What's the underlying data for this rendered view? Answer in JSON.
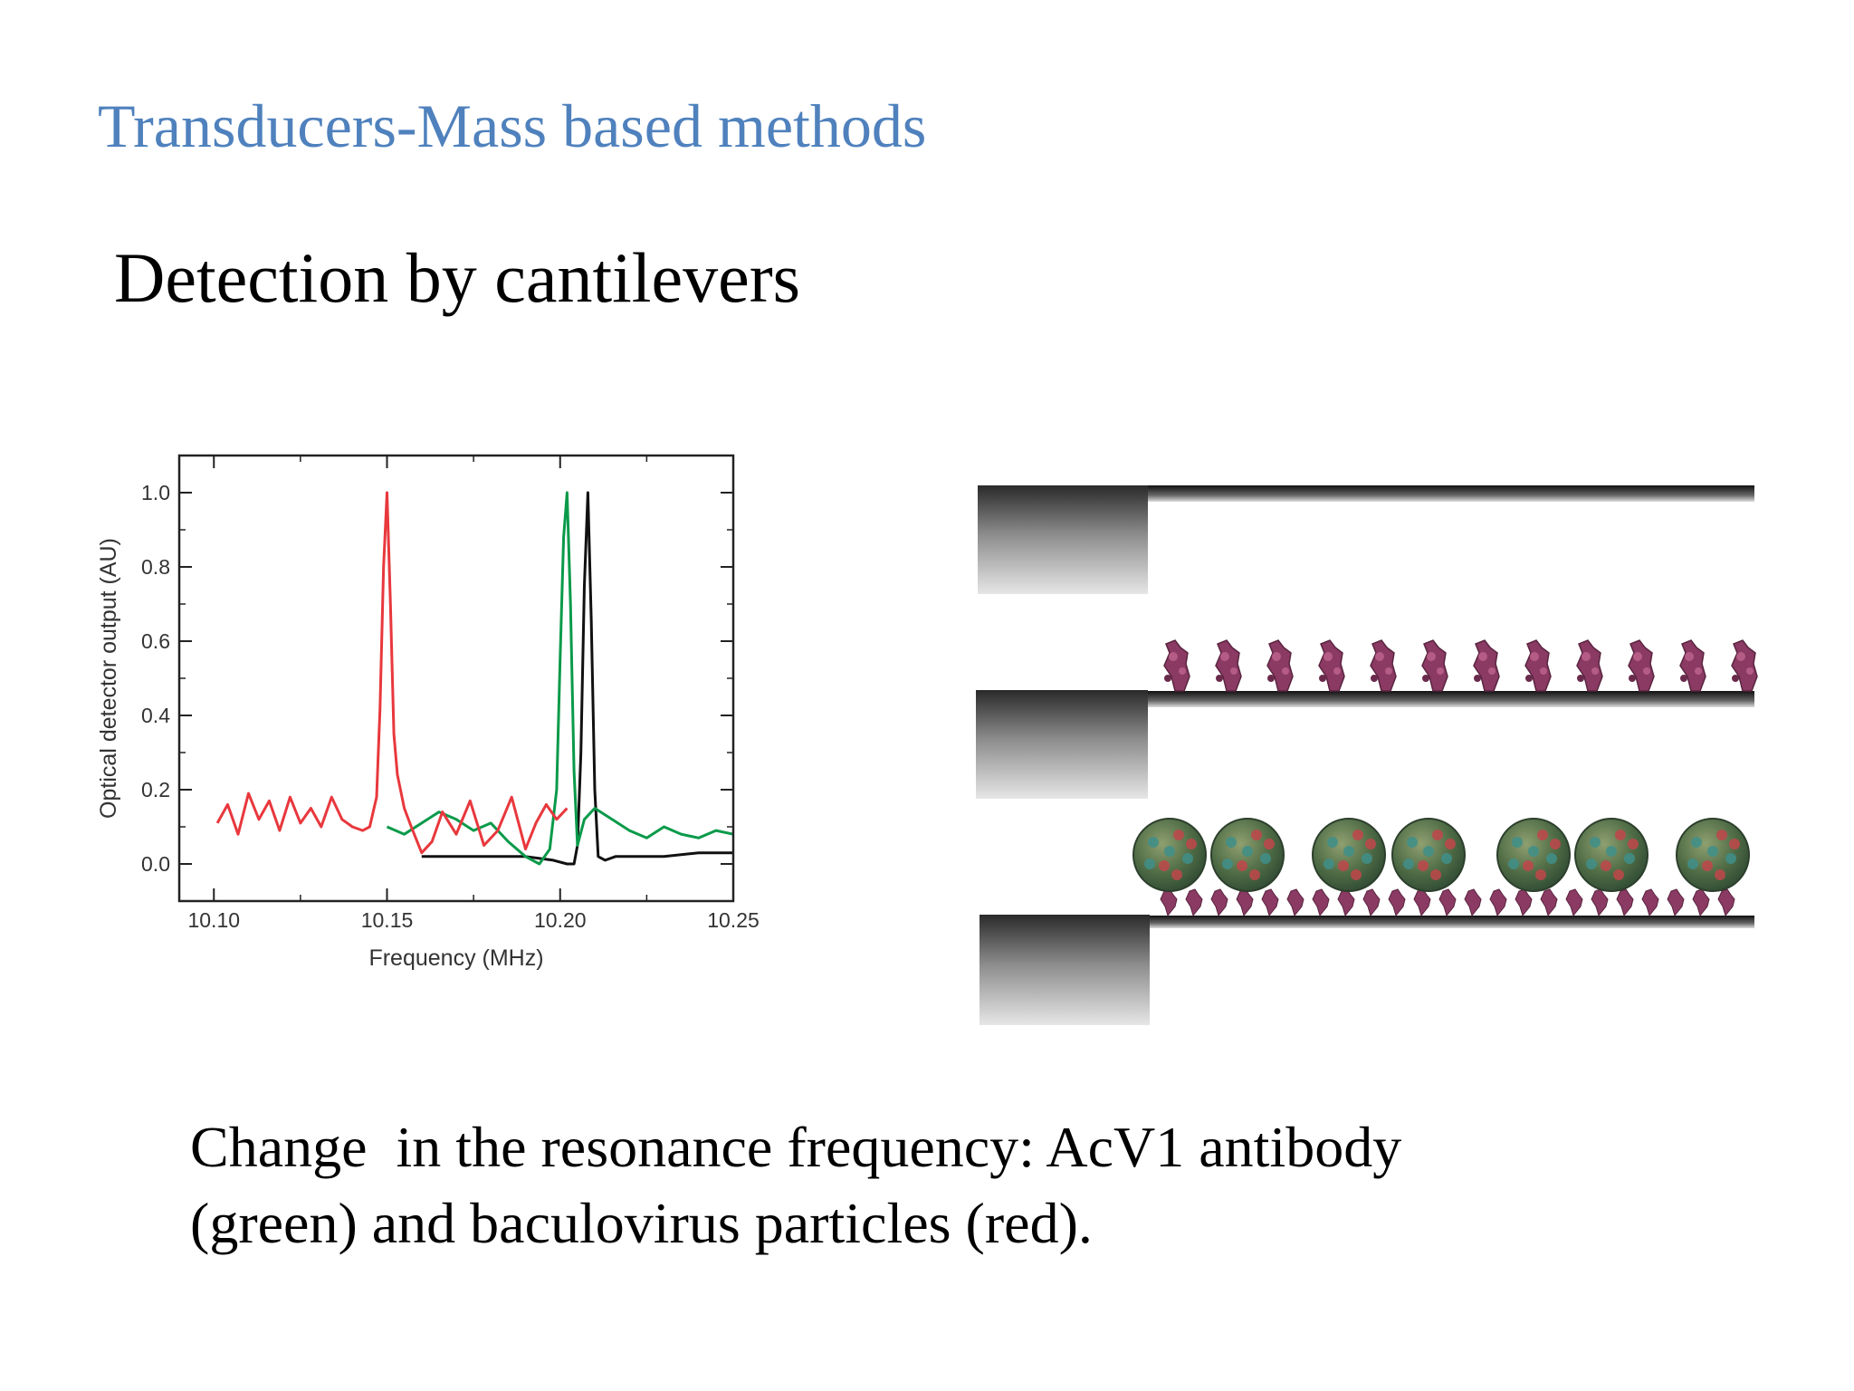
{
  "slide": {
    "title": "Transducers-Mass based methods",
    "subtitle": "Detection by cantilevers",
    "caption_lines": [
      "Change  in the resonance frequency: AcV1 antibody",
      "(green) and baculovirus particles (red)."
    ]
  },
  "chart_data": {
    "type": "line",
    "xlabel": "Frequency (MHz)",
    "ylabel": "Optical detector output (AU)",
    "xlim": [
      10.09,
      10.25
    ],
    "ylim": [
      -0.1,
      1.1
    ],
    "xticks": [
      "10.10",
      "10.15",
      "10.20",
      "10.25"
    ],
    "xtick_values": [
      10.1,
      10.15,
      10.2,
      10.25
    ],
    "yticks": [
      "0.0",
      "0.2",
      "0.4",
      "0.6",
      "0.8",
      "1.0"
    ],
    "ytick_values": [
      0.0,
      0.2,
      0.4,
      0.6,
      0.8,
      1.0
    ],
    "grid": false,
    "series": [
      {
        "color": "#e8383d",
        "peak_x": 10.15,
        "x": [
          10.101,
          10.104,
          10.107,
          10.11,
          10.113,
          10.116,
          10.119,
          10.122,
          10.125,
          10.128,
          10.131,
          10.134,
          10.137,
          10.14,
          10.143,
          10.145,
          10.147,
          10.148,
          10.149,
          10.15,
          10.151,
          10.152,
          10.153,
          10.155,
          10.157,
          10.16,
          10.163,
          10.166,
          10.17,
          10.174,
          10.178,
          10.182,
          10.186,
          10.19,
          10.193,
          10.196,
          10.199,
          10.202
        ],
        "y": [
          0.11,
          0.16,
          0.08,
          0.19,
          0.12,
          0.17,
          0.09,
          0.18,
          0.11,
          0.15,
          0.1,
          0.18,
          0.12,
          0.1,
          0.09,
          0.1,
          0.18,
          0.42,
          0.8,
          1.0,
          0.7,
          0.35,
          0.24,
          0.15,
          0.1,
          0.03,
          0.06,
          0.14,
          0.08,
          0.17,
          0.05,
          0.09,
          0.18,
          0.04,
          0.11,
          0.16,
          0.12,
          0.15
        ]
      },
      {
        "color": "#0a9a4a",
        "peak_x": 10.202,
        "x": [
          10.15,
          10.155,
          10.16,
          10.165,
          10.17,
          10.175,
          10.18,
          10.185,
          10.19,
          10.194,
          10.197,
          10.199,
          10.2,
          10.201,
          10.202,
          10.203,
          10.204,
          10.205,
          10.207,
          10.21,
          10.215,
          10.22,
          10.225,
          10.23,
          10.235,
          10.24,
          10.245,
          10.25
        ],
        "y": [
          0.1,
          0.08,
          0.11,
          0.14,
          0.12,
          0.09,
          0.11,
          0.06,
          0.02,
          0.0,
          0.04,
          0.2,
          0.55,
          0.88,
          1.0,
          0.7,
          0.25,
          0.05,
          0.12,
          0.15,
          0.12,
          0.09,
          0.07,
          0.1,
          0.08,
          0.07,
          0.09,
          0.08
        ]
      },
      {
        "color": "#111111",
        "peak_x": 10.208,
        "x": [
          10.16,
          10.17,
          10.18,
          10.19,
          10.198,
          10.202,
          10.204,
          10.205,
          10.206,
          10.207,
          10.208,
          10.209,
          10.21,
          10.211,
          10.213,
          10.216,
          10.22,
          10.23,
          10.24,
          10.25
        ],
        "y": [
          0.02,
          0.02,
          0.02,
          0.02,
          0.01,
          0.0,
          0.0,
          0.05,
          0.3,
          0.75,
          1.0,
          0.65,
          0.2,
          0.02,
          0.01,
          0.02,
          0.02,
          0.02,
          0.03,
          0.03
        ]
      }
    ]
  },
  "diagram": {
    "cantilevers": [
      {
        "state": "bare"
      },
      {
        "state": "antibody"
      },
      {
        "state": "antibody-virus"
      }
    ],
    "colors": {
      "antibody": "#8a3a63",
      "virus": "#5a7a4a",
      "virus_highlight": "#c0464a",
      "beam": "#222222"
    }
  }
}
